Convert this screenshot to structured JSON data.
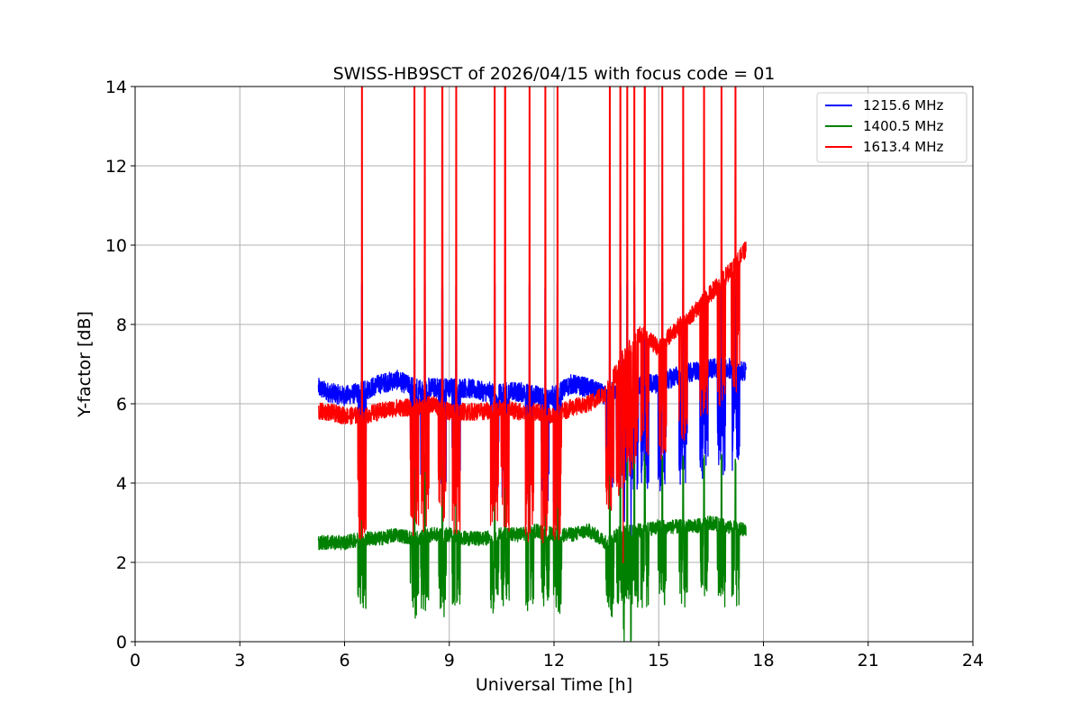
{
  "chart_data": {
    "type": "line",
    "title": "SWISS-HB9SCT of 2026/04/15 with focus code = 01",
    "xlabel": "Universal Time [h]",
    "ylabel": "Y-factor [dB]",
    "xlim": [
      0,
      24
    ],
    "ylim": [
      0,
      14
    ],
    "xticks": [
      0,
      3,
      6,
      9,
      12,
      15,
      18,
      21,
      24
    ],
    "yticks": [
      0,
      2,
      4,
      6,
      8,
      10,
      12,
      14
    ],
    "grid": true,
    "legend_position": "top-right",
    "spikes": [
      6.5,
      8.0,
      8.3,
      8.8,
      9.2,
      10.3,
      10.6,
      11.3,
      11.75,
      12.1,
      13.6,
      13.9,
      14.1,
      14.3,
      14.6,
      15.1,
      15.7,
      16.3,
      16.8,
      17.2
    ],
    "series": [
      {
        "name": "1215.6 MHz",
        "color": "#0000ff",
        "x": [
          5.25,
          5.5,
          6.0,
          6.5,
          7.0,
          7.5,
          8.0,
          8.5,
          9.0,
          9.5,
          10.0,
          10.5,
          11.0,
          11.5,
          12.0,
          12.5,
          13.0,
          13.5,
          14.0,
          14.5,
          15.0,
          15.5,
          16.0,
          16.5,
          17.0,
          17.5
        ],
        "values": [
          6.4,
          6.3,
          6.2,
          6.3,
          6.5,
          6.6,
          6.4,
          6.4,
          6.4,
          6.4,
          6.3,
          6.3,
          6.3,
          6.2,
          6.2,
          6.5,
          6.4,
          6.2,
          6.5,
          6.5,
          6.5,
          6.7,
          6.8,
          6.9,
          6.9,
          6.8
        ]
      },
      {
        "name": "1400.5 MHz",
        "color": "#008000",
        "x": [
          5.25,
          5.5,
          6.0,
          6.5,
          7.0,
          7.5,
          8.0,
          8.5,
          9.0,
          9.5,
          10.0,
          10.5,
          11.0,
          11.5,
          12.0,
          12.5,
          13.0,
          13.5,
          14.0,
          14.5,
          15.0,
          15.5,
          16.0,
          16.5,
          17.0,
          17.5
        ],
        "values": [
          2.5,
          2.5,
          2.5,
          2.6,
          2.6,
          2.7,
          2.6,
          2.7,
          2.7,
          2.6,
          2.6,
          2.7,
          2.7,
          2.8,
          2.7,
          2.7,
          2.8,
          2.5,
          2.8,
          2.8,
          2.9,
          2.9,
          2.9,
          3.0,
          2.9,
          2.8
        ]
      },
      {
        "name": "1613.4 MHz",
        "color": "#ff0000",
        "x": [
          5.25,
          5.5,
          6.0,
          6.5,
          7.0,
          7.5,
          8.0,
          8.5,
          9.0,
          9.5,
          10.0,
          10.5,
          11.0,
          11.5,
          12.0,
          12.5,
          13.0,
          13.5,
          14.0,
          14.5,
          15.0,
          15.5,
          16.0,
          16.5,
          17.0,
          17.5
        ],
        "values": [
          5.8,
          5.8,
          5.7,
          5.7,
          5.8,
          5.9,
          5.9,
          6.0,
          5.8,
          5.8,
          5.8,
          5.9,
          5.8,
          5.8,
          5.7,
          5.9,
          6.0,
          6.3,
          7.2,
          7.8,
          7.4,
          7.9,
          8.3,
          8.8,
          9.3,
          9.9
        ]
      }
    ]
  }
}
